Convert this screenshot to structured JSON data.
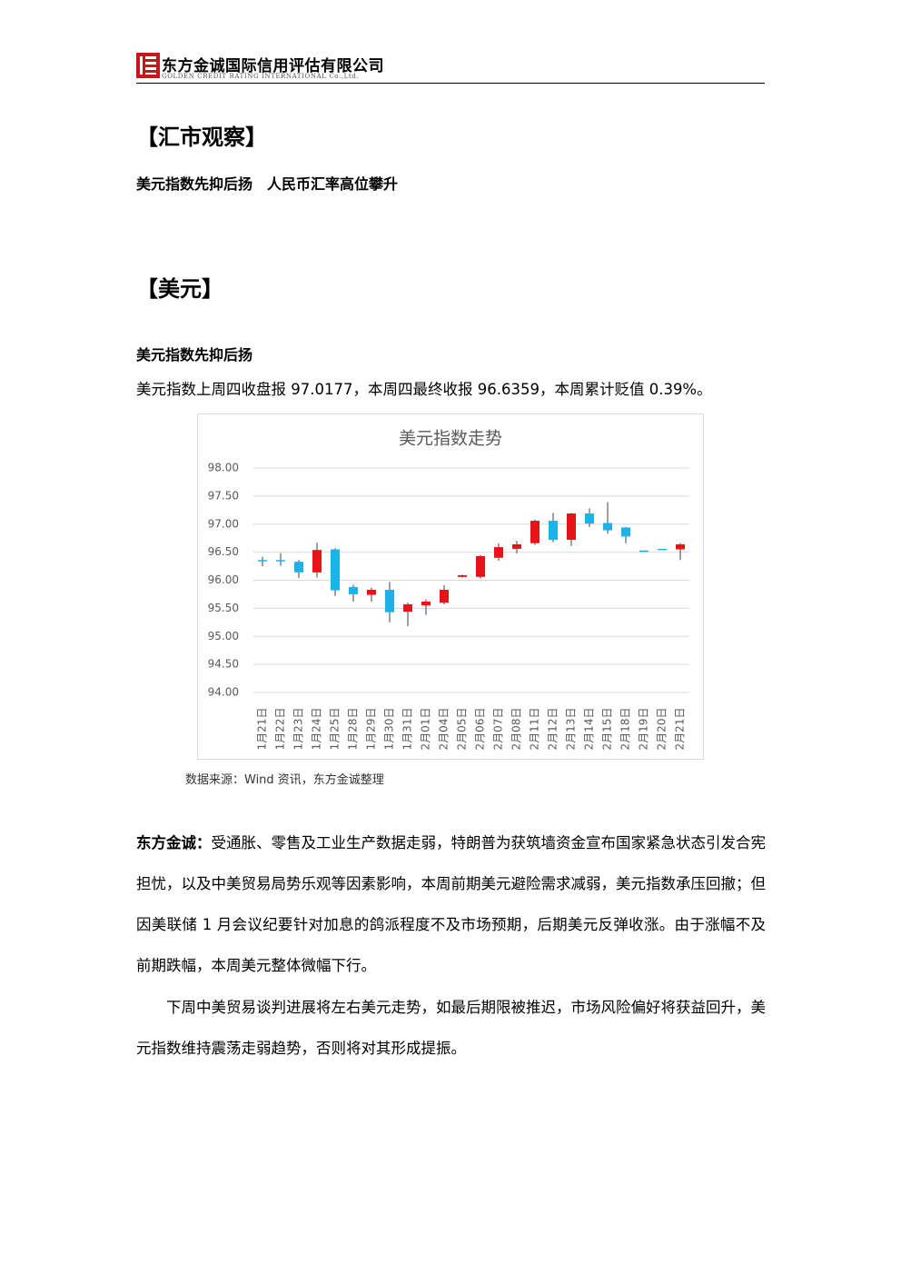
{
  "header": {
    "company": "东方金诚国际信用评估有限公司",
    "company_en": "GOLDEN CREDIT RATING INTERNATIONAL Co.,Ltd."
  },
  "section1": {
    "title": "【汇市观察】",
    "subtitle": "美元指数先抑后扬　人民币汇率高位攀升"
  },
  "section2": {
    "title": "【美元】",
    "subtitle": "美元指数先抑后扬",
    "intro": "美元指数上周四收盘报 97.0177，本周四最终收报 96.6359，本周累计贬值 0.39%。",
    "source": "数据来源：Wind 资讯，东方金诚整理",
    "comment_label": "东方金诚：",
    "comment": "受通胀、零售及工业生产数据走弱，特朗普为获筑墙资金宣布国家紧急状态引发合宪担忧，以及中美贸易局势乐观等因素影响，本周前期美元避险需求减弱，美元指数承压回撤；但因美联储 1 月会议纪要针对加息的鸽派程度不及市场预期，后期美元反弹收涨。由于涨幅不及前期跌幅，本周美元整体微幅下行。",
    "outlook": "下周中美贸易谈判进展将左右美元走势，如最后期限被推迟，市场风险偏好将获益回升，美元指数维持震荡走弱趋势，否则将对其形成提振。"
  },
  "chart_data": {
    "type": "candlestick",
    "title": "美元指数走势",
    "categories": [
      "1月21日",
      "1月22日",
      "1月23日",
      "1月24日",
      "1月25日",
      "1月28日",
      "1月29日",
      "1月30日",
      "1月31日",
      "2月01日",
      "2月04日",
      "2月05日",
      "2月06日",
      "2月07日",
      "2月08日",
      "2月11日",
      "2月12日",
      "2月13日",
      "2月14日",
      "2月15日",
      "2月18日",
      "2月19日",
      "2月20日",
      "2月21日"
    ],
    "open": [
      96.36,
      96.36,
      96.33,
      96.14,
      96.55,
      95.88,
      95.74,
      95.83,
      95.44,
      95.55,
      95.6,
      96.06,
      96.06,
      96.4,
      96.56,
      96.66,
      97.06,
      96.72,
      97.19,
      97.02,
      96.94,
      96.53,
      96.56,
      96.55
    ],
    "high": [
      96.42,
      96.48,
      96.36,
      96.67,
      96.57,
      95.92,
      95.87,
      95.97,
      95.6,
      95.66,
      95.91,
      96.1,
      96.45,
      96.66,
      96.7,
      97.08,
      97.2,
      97.2,
      97.28,
      97.39,
      96.95,
      96.53,
      96.56,
      96.66
    ],
    "low": [
      96.25,
      96.26,
      96.04,
      96.05,
      95.72,
      95.62,
      95.62,
      95.25,
      95.18,
      95.38,
      95.57,
      96.05,
      96.03,
      96.35,
      96.48,
      96.63,
      96.68,
      96.61,
      96.95,
      96.83,
      96.66,
      96.51,
      96.54,
      96.36
    ],
    "close": [
      96.34,
      96.34,
      96.14,
      96.54,
      95.82,
      95.75,
      95.83,
      95.43,
      95.57,
      95.62,
      95.83,
      96.09,
      96.43,
      96.59,
      96.64,
      97.06,
      96.72,
      97.19,
      97.01,
      96.89,
      96.78,
      96.52,
      96.55,
      96.64
    ],
    "up_color": "#e8121b",
    "down_color": "#1fb2e8",
    "ylim": [
      94,
      98
    ],
    "yticks": [
      {
        "value": 94,
        "label": "94.00"
      },
      {
        "value": 94.5,
        "label": "94.50"
      },
      {
        "value": 95,
        "label": "95.00"
      },
      {
        "value": 95.5,
        "label": "95.50"
      },
      {
        "value": 96,
        "label": "96.00"
      },
      {
        "value": 96.5,
        "label": "96.50"
      },
      {
        "value": 97,
        "label": "97.00"
      },
      {
        "value": 97.5,
        "label": "97.50"
      },
      {
        "value": 98,
        "label": "98.00"
      }
    ],
    "grid": true
  }
}
